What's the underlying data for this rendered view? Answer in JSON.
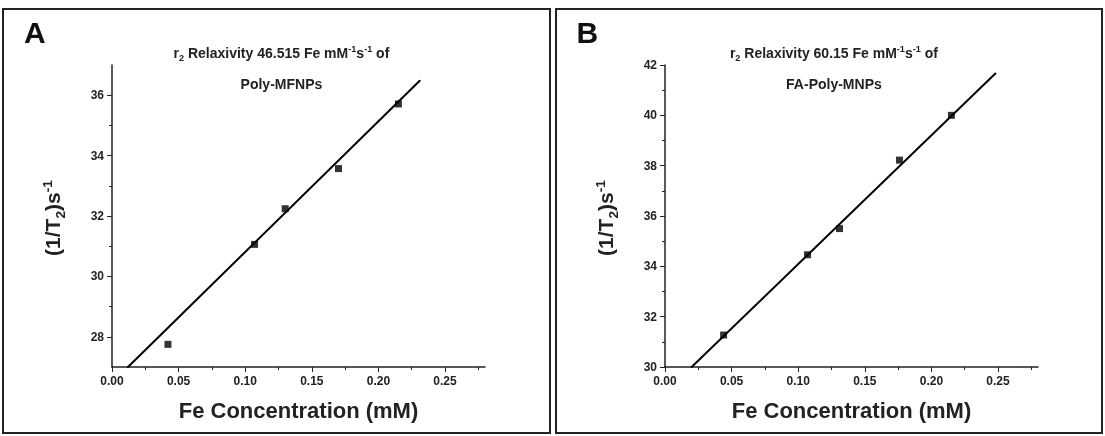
{
  "chart_data": [
    {
      "type": "scatter",
      "title": "r$_{2}$ Relaxivity 46.515 Fe mM$^{-1}$s$^{-1}$ of\nPoly-MFNPs",
      "xlabel": "Fe Concentration (mM)",
      "ylabel": "(1/T$_{2}$)s$^{-1}$",
      "annotations": [
        "A"
      ],
      "xlim": [
        0,
        0.28
      ],
      "xticks": [
        {
          "value": 0,
          "label": "0.00"
        },
        {
          "value": 0.05,
          "label": "0.05"
        },
        {
          "value": 0.1,
          "label": "0.10"
        },
        {
          "value": 0.15,
          "label": "0.15"
        },
        {
          "value": 0.2,
          "label": "0.20"
        },
        {
          "value": 0.25,
          "label": "0.25"
        }
      ],
      "ylim": [
        27,
        37
      ],
      "yticks": [
        28,
        30,
        32,
        34,
        36
      ],
      "grid": false,
      "series": [
        {
          "color": "#000000",
          "marker": "square",
          "x": [
            0.042,
            0.107,
            0.13,
            0.17,
            0.215
          ],
          "values": [
            27.75,
            31.06,
            32.24,
            33.57,
            35.71
          ]
        },
        {
          "type": "line",
          "color": "#000000",
          "marker": "none",
          "line_style": "solid",
          "x": [
            0.012,
            0.231
          ],
          "values": [
            27,
            36.48
          ]
        }
      ]
    },
    {
      "type": "scatter",
      "title": "r$_{2}$ Relaxivity 60.15 Fe mM$^{-1}$s$^{-1}$ of\nFA-Poly-MNPs",
      "xlabel": "Fe Concentration (mM)",
      "ylabel": "(1/T$_{2}$)s$^{-1}$",
      "annotations": [
        "B"
      ],
      "xlim": [
        0,
        0.28
      ],
      "xticks": [
        {
          "value": 0,
          "label": "0.00"
        },
        {
          "value": 0.05,
          "label": "0.05"
        },
        {
          "value": 0.1,
          "label": "0.10"
        },
        {
          "value": 0.15,
          "label": "0.15"
        },
        {
          "value": 0.2,
          "label": "0.20"
        },
        {
          "value": 0.25,
          "label": "0.25"
        }
      ],
      "ylim": [
        30,
        42
      ],
      "yticks": [
        30,
        32,
        34,
        36,
        38,
        40,
        42
      ],
      "grid": false,
      "series": [
        {
          "color": "#000000",
          "marker": "square",
          "x": [
            0.044,
            0.107,
            0.131,
            0.176,
            0.215
          ],
          "values": [
            31.27,
            34.46,
            35.5,
            38.22,
            40.0
          ]
        },
        {
          "type": "line",
          "color": "#000000",
          "marker": "none",
          "line_style": "solid",
          "x": [
            0.02,
            0.248
          ],
          "values": [
            30,
            41.66
          ]
        }
      ]
    }
  ]
}
